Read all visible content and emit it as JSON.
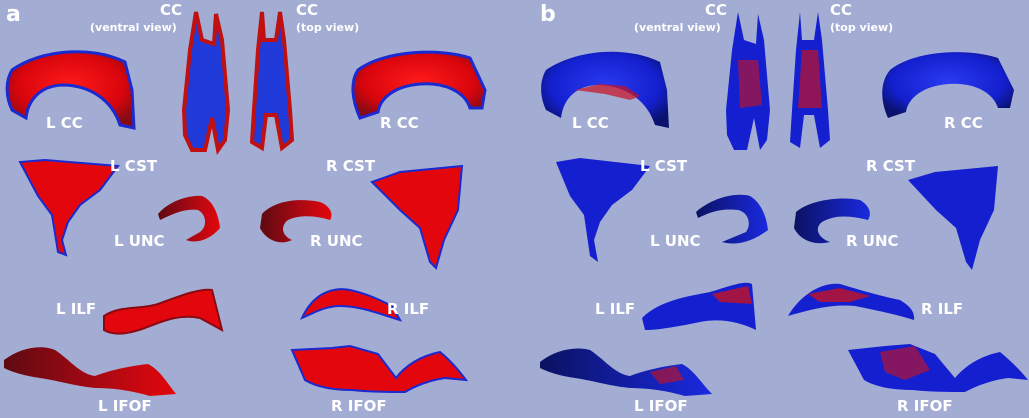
{
  "panels": [
    {
      "letter": "a",
      "cc_title": "CC",
      "cc_ventral_caption": "(ventral view)",
      "cc_top_caption": "(top view)",
      "labels": {
        "l_cc": "L CC",
        "r_cc": "R CC",
        "l_cst": "L CST",
        "r_cst": "R CST",
        "l_unc": "L UNC",
        "r_unc": "R UNC",
        "l_ilf": "L ILF",
        "r_ilf": "R ILF",
        "l_ifof": "L IFOF",
        "r_ifof": "R IFOF"
      },
      "dominant_color": "#e3060c"
    },
    {
      "letter": "b",
      "cc_title": "CC",
      "cc_ventral_caption": "(ventral view)",
      "cc_top_caption": "(top view)",
      "labels": {
        "l_cc": "L CC",
        "r_cc": "R CC",
        "l_cst": "L CST",
        "r_cst": "R CST",
        "l_unc": "L UNC",
        "r_unc": "R UNC",
        "l_ilf": "L ILF",
        "r_ilf": "R ILF",
        "l_ifof": "L IFOF",
        "r_ifof": "R IFOF"
      },
      "dominant_color": "#1420cf"
    }
  ],
  "colors": {
    "background": "#a3acd3",
    "red": "#e3060c",
    "dark_red": "#8a0a14",
    "blue": "#1420cf",
    "dark_blue": "#0c1585",
    "label": "#ffffff"
  }
}
